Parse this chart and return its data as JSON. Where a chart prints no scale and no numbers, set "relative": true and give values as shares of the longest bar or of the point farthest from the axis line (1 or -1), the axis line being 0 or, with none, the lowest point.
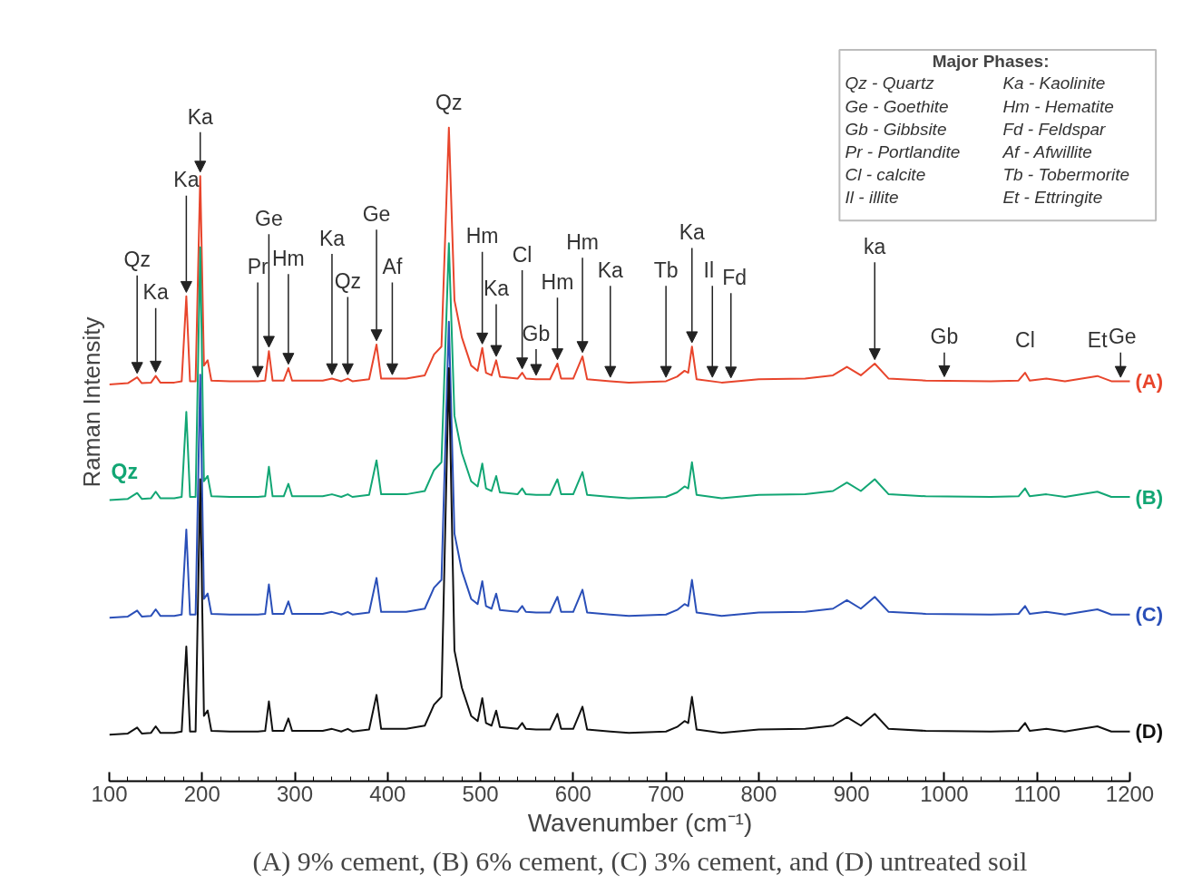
{
  "chart_data": {
    "type": "line",
    "relative": true,
    "title": "(A) 9% cement, (B) 6% cement, (C) 3% cement, and (D) untreated soil",
    "xlabel": "Wavenumber (cm⁻¹)",
    "ylabel": "Raman Intensity",
    "xlim": [
      100,
      1200
    ],
    "xticks": [
      100,
      200,
      300,
      400,
      500,
      600,
      700,
      800,
      900,
      1000,
      1100,
      1200
    ],
    "grid": false,
    "legend": false,
    "x": [
      100,
      120,
      130,
      135,
      145,
      150,
      155,
      170,
      178,
      183,
      187,
      193,
      198,
      202,
      206,
      210,
      230,
      260,
      268,
      272,
      276,
      288,
      293,
      297,
      330,
      340,
      350,
      357,
      362,
      380,
      388,
      393,
      420,
      440,
      450,
      458,
      466,
      472,
      480,
      490,
      497,
      502,
      506,
      512,
      517,
      521,
      540,
      545,
      549,
      560,
      575,
      583,
      587,
      600,
      610,
      615,
      640,
      660,
      700,
      712,
      720,
      724,
      728,
      733,
      760,
      800,
      850,
      880,
      895,
      910,
      925,
      940,
      980,
      1050,
      1080,
      1087,
      1092,
      1110,
      1130,
      1165,
      1180,
      1200
    ],
    "series": [
      {
        "name": "(A)",
        "color": "#e8452c",
        "values": [
          0.607,
          0.609,
          0.618,
          0.609,
          0.61,
          0.62,
          0.61,
          0.61,
          0.612,
          0.742,
          0.612,
          0.612,
          0.926,
          0.636,
          0.644,
          0.613,
          0.612,
          0.612,
          0.613,
          0.658,
          0.613,
          0.613,
          0.632,
          0.613,
          0.613,
          0.616,
          0.612,
          0.616,
          0.612,
          0.615,
          0.668,
          0.616,
          0.616,
          0.621,
          0.653,
          0.665,
          1.0,
          0.736,
          0.679,
          0.636,
          0.628,
          0.663,
          0.625,
          0.621,
          0.644,
          0.619,
          0.616,
          0.625,
          0.616,
          0.615,
          0.615,
          0.639,
          0.616,
          0.616,
          0.65,
          0.615,
          0.612,
          0.61,
          0.612,
          0.619,
          0.628,
          0.625,
          0.665,
          0.615,
          0.61,
          0.615,
          0.616,
          0.621,
          0.634,
          0.621,
          0.639,
          0.616,
          0.613,
          0.612,
          0.613,
          0.625,
          0.613,
          0.616,
          0.612,
          0.62,
          0.612,
          0.612
        ]
      },
      {
        "name": "(B)",
        "color": "#12a674",
        "values": [
          0.43,
          0.432,
          0.441,
          0.432,
          0.433,
          0.443,
          0.433,
          0.433,
          0.435,
          0.565,
          0.435,
          0.435,
          0.817,
          0.459,
          0.467,
          0.436,
          0.435,
          0.435,
          0.436,
          0.481,
          0.436,
          0.436,
          0.455,
          0.436,
          0.436,
          0.439,
          0.435,
          0.439,
          0.435,
          0.438,
          0.491,
          0.439,
          0.439,
          0.444,
          0.476,
          0.488,
          0.823,
          0.559,
          0.502,
          0.459,
          0.451,
          0.486,
          0.448,
          0.444,
          0.467,
          0.442,
          0.439,
          0.448,
          0.439,
          0.438,
          0.438,
          0.462,
          0.439,
          0.439,
          0.473,
          0.438,
          0.435,
          0.433,
          0.435,
          0.442,
          0.451,
          0.448,
          0.488,
          0.438,
          0.433,
          0.438,
          0.439,
          0.444,
          0.457,
          0.444,
          0.462,
          0.439,
          0.436,
          0.435,
          0.436,
          0.448,
          0.436,
          0.439,
          0.435,
          0.443,
          0.435,
          0.435
        ]
      },
      {
        "name": "(C)",
        "color": "#2a4fb8",
        "values": [
          0.25,
          0.252,
          0.261,
          0.252,
          0.253,
          0.263,
          0.253,
          0.253,
          0.255,
          0.385,
          0.255,
          0.255,
          0.622,
          0.279,
          0.287,
          0.256,
          0.255,
          0.255,
          0.256,
          0.301,
          0.256,
          0.256,
          0.275,
          0.256,
          0.256,
          0.259,
          0.255,
          0.259,
          0.255,
          0.258,
          0.311,
          0.259,
          0.259,
          0.264,
          0.296,
          0.308,
          0.703,
          0.379,
          0.322,
          0.279,
          0.271,
          0.306,
          0.268,
          0.264,
          0.287,
          0.262,
          0.259,
          0.268,
          0.259,
          0.258,
          0.258,
          0.282,
          0.259,
          0.259,
          0.293,
          0.258,
          0.255,
          0.253,
          0.255,
          0.262,
          0.271,
          0.268,
          0.308,
          0.258,
          0.253,
          0.258,
          0.259,
          0.264,
          0.277,
          0.264,
          0.282,
          0.259,
          0.256,
          0.255,
          0.256,
          0.268,
          0.256,
          0.259,
          0.255,
          0.263,
          0.255,
          0.255
        ]
      },
      {
        "name": "(D)",
        "color": "#111111",
        "values": [
          0.071,
          0.073,
          0.082,
          0.073,
          0.074,
          0.084,
          0.074,
          0.074,
          0.076,
          0.206,
          0.076,
          0.076,
          0.462,
          0.1,
          0.108,
          0.077,
          0.076,
          0.076,
          0.077,
          0.122,
          0.077,
          0.077,
          0.096,
          0.077,
          0.077,
          0.08,
          0.076,
          0.08,
          0.076,
          0.079,
          0.132,
          0.08,
          0.08,
          0.085,
          0.117,
          0.129,
          0.632,
          0.2,
          0.143,
          0.1,
          0.092,
          0.127,
          0.089,
          0.085,
          0.108,
          0.083,
          0.08,
          0.089,
          0.08,
          0.079,
          0.079,
          0.103,
          0.08,
          0.08,
          0.114,
          0.079,
          0.076,
          0.074,
          0.076,
          0.083,
          0.092,
          0.089,
          0.129,
          0.079,
          0.074,
          0.079,
          0.08,
          0.085,
          0.098,
          0.085,
          0.103,
          0.08,
          0.077,
          0.076,
          0.077,
          0.089,
          0.077,
          0.08,
          0.076,
          0.084,
          0.076,
          0.076
        ]
      }
    ],
    "annotations": [
      {
        "text": "Qz",
        "x": 130,
        "y": 0.618
      },
      {
        "text": "Ka",
        "x": 150,
        "y": 0.62
      },
      {
        "text": "Ka",
        "x": 183,
        "y": 0.742
      },
      {
        "text": "Ka",
        "x": 198,
        "y": 0.926
      },
      {
        "text": "Pr",
        "x": 260,
        "y": 0.612
      },
      {
        "text": "Ge",
        "x": 272,
        "y": 0.658
      },
      {
        "text": "Hm",
        "x": 293,
        "y": 0.632
      },
      {
        "text": "Ka",
        "x": 340,
        "y": 0.616
      },
      {
        "text": "Qz",
        "x": 357,
        "y": 0.616
      },
      {
        "text": "Ge",
        "x": 388,
        "y": 0.668
      },
      {
        "text": "Af",
        "x": 405,
        "y": 0.616
      },
      {
        "text": "Qz",
        "x": 466,
        "y": 1.0
      },
      {
        "text": "Hm",
        "x": 502,
        "y": 0.663
      },
      {
        "text": "Ka",
        "x": 517,
        "y": 0.644
      },
      {
        "text": "Cl",
        "x": 545,
        "y": 0.625
      },
      {
        "text": "Gb",
        "x": 560,
        "y": 0.615
      },
      {
        "text": "Hm",
        "x": 583,
        "y": 0.639
      },
      {
        "text": "Hm",
        "x": 610,
        "y": 0.65
      },
      {
        "text": "Ka",
        "x": 640,
        "y": 0.612
      },
      {
        "text": "Tb",
        "x": 700,
        "y": 0.612
      },
      {
        "text": "Ka",
        "x": 728,
        "y": 0.665
      },
      {
        "text": "Il",
        "x": 750,
        "y": 0.612
      },
      {
        "text": "Fd",
        "x": 770,
        "y": 0.611
      },
      {
        "text": "ka",
        "x": 925,
        "y": 0.639
      },
      {
        "text": "Gb",
        "x": 1000,
        "y": 0.613
      },
      {
        "text": "Cl",
        "x": 1087,
        "y": 0.625
      },
      {
        "text": "Et",
        "x": 1165,
        "y": 0.62
      },
      {
        "text": "Ge",
        "x": 1190,
        "y": 0.612
      },
      {
        "text": "Qz",
        "x": 130,
        "y": 0.441
      },
      "Major Phases:",
      "Qz - Quartz",
      "Ge - Goethite",
      "Gb - Gibbsite",
      "Pr - Portlandite",
      "Cl - calcite",
      "Il - illite",
      "Ka - Kaolinite",
      "Hm - Hematite",
      "Fd - Feldspar",
      "Af - Afwillite",
      "Tb - Tobermorite",
      "Et - Ettringite"
    ]
  }
}
